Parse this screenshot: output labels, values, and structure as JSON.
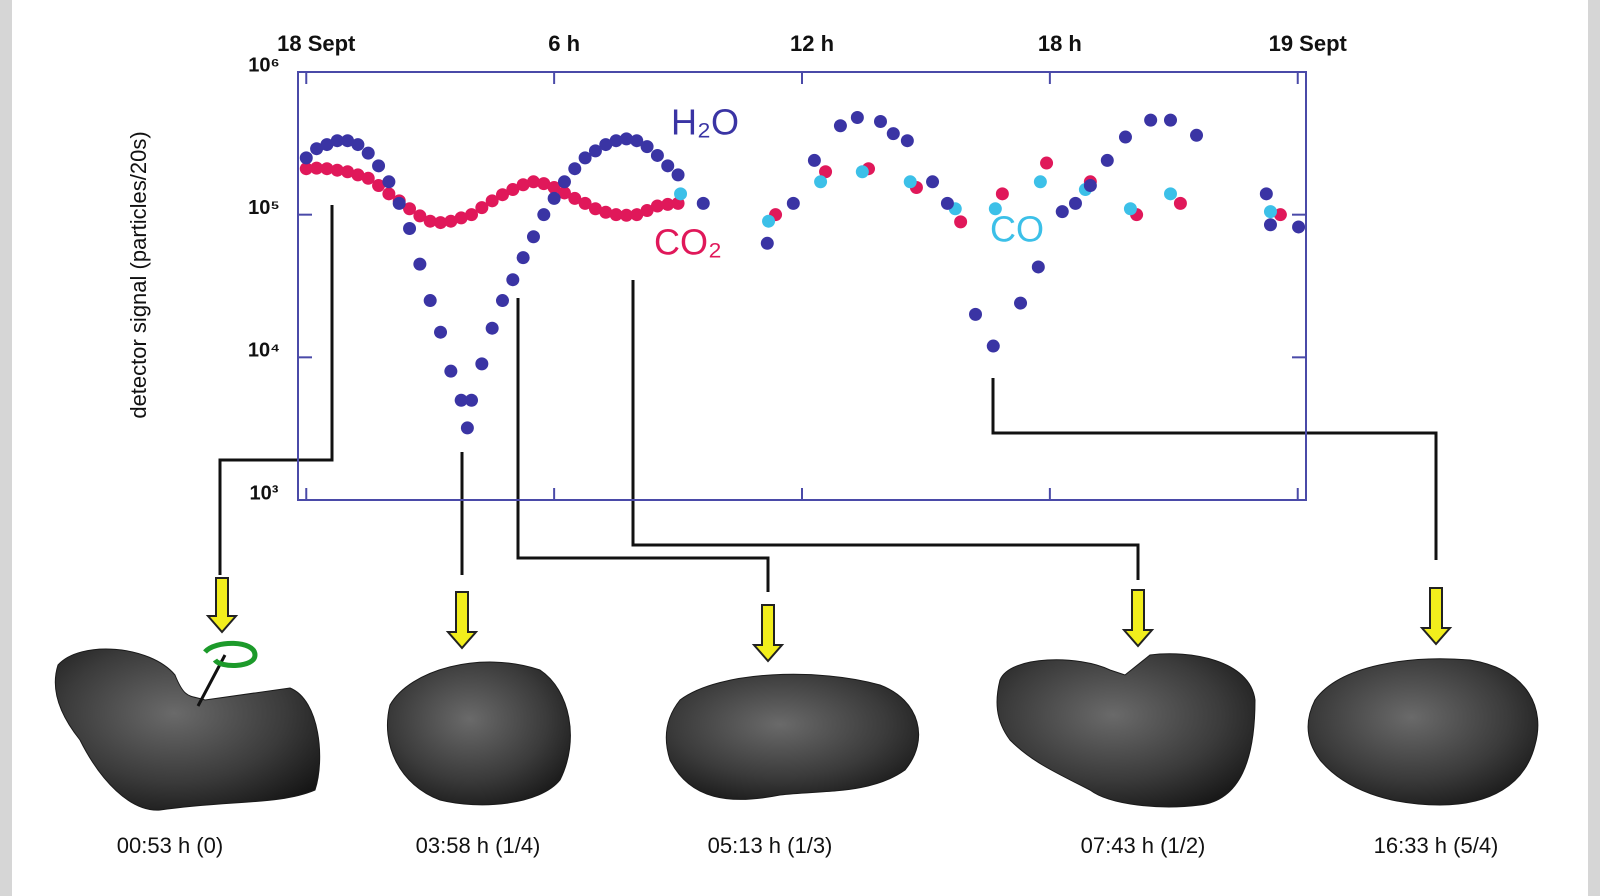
{
  "chart_data": {
    "type": "scatter",
    "ylabel": "detector signal (particles/20s)",
    "xlim": [
      -0.2,
      24.2
    ],
    "xticks": [
      {
        "value": 0,
        "label": "18 Sept"
      },
      {
        "value": 6,
        "label": "6 h"
      },
      {
        "value": 12,
        "label": "12 h"
      },
      {
        "value": 18,
        "label": "18 h"
      },
      {
        "value": 24,
        "label": "19 Sept"
      }
    ],
    "ylim": [
      1000,
      1000000
    ],
    "log_y": true,
    "yticks": [
      {
        "value": 1000,
        "label": "10³"
      },
      {
        "value": 10000,
        "label": "10⁴"
      },
      {
        "value": 100000,
        "label": "10⁵"
      },
      {
        "value": 1000000,
        "label": "10⁶"
      }
    ],
    "series": [
      {
        "name": "CO₂",
        "color": "#e0185a",
        "x": [
          0,
          0.25,
          0.5,
          0.75,
          1,
          1.25,
          1.5,
          1.75,
          2,
          2.25,
          2.5,
          2.75,
          3,
          3.25,
          3.5,
          3.75,
          4,
          4.25,
          4.5,
          4.75,
          5,
          5.25,
          5.5,
          5.75,
          6,
          6.25,
          6.5,
          6.75,
          7,
          7.25,
          7.5,
          7.75,
          8,
          8.25,
          8.5,
          8.75,
          9,
          11.36,
          12.57,
          13.61,
          14.77,
          15.84,
          16.85,
          17.92,
          18.98,
          20.1,
          21.16,
          23.58
        ],
        "values": [
          210000,
          212000,
          210000,
          205000,
          200000,
          190000,
          180000,
          160000,
          140000,
          125000,
          110000,
          98000,
          90000,
          88000,
          90000,
          95000,
          100000,
          112000,
          125000,
          138000,
          150000,
          162000,
          170000,
          165000,
          155000,
          142000,
          130000,
          120000,
          110000,
          104000,
          100000,
          99000,
          100000,
          107000,
          115000,
          118000,
          120000,
          100000,
          200000,
          210000,
          155000,
          89000,
          140000,
          230000,
          170000,
          100000,
          120000,
          100000
        ]
      },
      {
        "name": "CO",
        "color": "#3cc0e8",
        "x": [
          9.06,
          11.19,
          12.45,
          13.46,
          14.62,
          15.71,
          16.68,
          17.77,
          18.86,
          19.95,
          20.92,
          23.34
        ],
        "values": [
          140000,
          90000,
          170000,
          200000,
          170000,
          110000,
          110000,
          170000,
          150000,
          110000,
          140000,
          105000
        ]
      },
      {
        "name": "H₂O",
        "color": "#3a34a4",
        "x": [
          0,
          0.25,
          0.5,
          0.75,
          1,
          1.25,
          1.5,
          1.75,
          2,
          2.25,
          2.5,
          2.75,
          3,
          3.25,
          3.5,
          3.75,
          3.9,
          4,
          4.25,
          4.5,
          4.75,
          5,
          5.25,
          5.5,
          5.75,
          6,
          6.25,
          6.5,
          6.75,
          7,
          7.25,
          7.5,
          7.75,
          8,
          8.25,
          8.5,
          8.75,
          9,
          9.61,
          11.16,
          11.79,
          12.3,
          12.93,
          13.34,
          13.9,
          14.21,
          14.55,
          15.16,
          15.52,
          16.2,
          16.63,
          17.29,
          17.72,
          18.3,
          18.62,
          18.98,
          19.39,
          19.83,
          20.44,
          20.92,
          21.55,
          23.24,
          23.34,
          24.02
        ],
        "values": [
          250000,
          290000,
          310000,
          330000,
          330000,
          310000,
          270000,
          220000,
          170000,
          120000,
          80000,
          45000,
          25000,
          15000,
          8000,
          5000,
          3200,
          5000,
          9000,
          16000,
          25000,
          35000,
          50000,
          70000,
          100000,
          130000,
          170000,
          210000,
          250000,
          280000,
          310000,
          330000,
          340000,
          330000,
          300000,
          260000,
          220000,
          190000,
          120000,
          63000,
          120000,
          240000,
          420000,
          480000,
          450000,
          370000,
          330000,
          170000,
          120000,
          20000,
          12000,
          24000,
          43000,
          105000,
          120000,
          160000,
          240000,
          350000,
          460000,
          460000,
          360000,
          140000,
          85000,
          82000
        ]
      }
    ]
  },
  "snapshots": [
    "00:53 h (0)",
    "03:58 h (1/4)",
    "05:13 h (1/3)",
    "07:43 h (1/2)",
    "16:33 h (5/4)"
  ]
}
